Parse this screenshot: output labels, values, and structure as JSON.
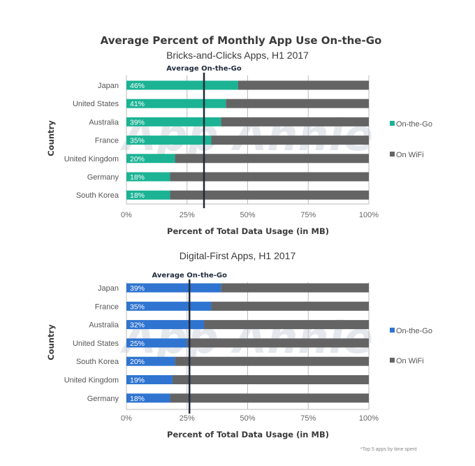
{
  "main_title": "Average Percent of Monthly App Use On-the-Go",
  "footnote": "*Top 5 apps by time spent",
  "watermark": "App Annie",
  "colors": {
    "on_wifi": "#646464",
    "axis": "#bbbbbb",
    "average_line": "#1f2b3b"
  },
  "chart_data": [
    {
      "type": "bar",
      "orientation": "horizontal",
      "stacked": true,
      "title": "Bricks-and-Clicks  Apps, H1 2017",
      "xlabel": "Percent of Total Data Usage (in MB)",
      "ylabel": "Country",
      "xlim": [
        0,
        100
      ],
      "xticks": [
        "0%",
        "25%",
        "50%",
        "75%",
        "100%"
      ],
      "categories": [
        "Japan",
        "United States",
        "Australia",
        "France",
        "United Kingdom",
        "Germany",
        "South Korea"
      ],
      "series": [
        {
          "name": "On-the-Go",
          "color": "#1bb394",
          "values": [
            46,
            41,
            39,
            35,
            20,
            18,
            18
          ]
        },
        {
          "name": "On WiFi",
          "color": "#646464",
          "values": [
            54,
            59,
            61,
            65,
            80,
            82,
            82
          ]
        }
      ],
      "data_labels": [
        "46%",
        "41%",
        "39%",
        "35%",
        "20%",
        "18%",
        "18%"
      ],
      "reference_line": {
        "label": "Average On-the-Go",
        "value": 32
      },
      "legend": [
        "On-the-Go",
        "On WiFi"
      ],
      "legend_position": "right",
      "grid": true
    },
    {
      "type": "bar",
      "orientation": "horizontal",
      "stacked": true,
      "title": "Digital-First Apps, H1 2017",
      "xlabel": "Percent of Total Data Usage (in MB)",
      "ylabel": "Country",
      "xlim": [
        0,
        100
      ],
      "xticks": [
        "0%",
        "25%",
        "50%",
        "75%",
        "100%"
      ],
      "categories": [
        "Japan",
        "France",
        "Australia",
        "United States",
        "South Korea",
        "United Kingdom",
        "Germany"
      ],
      "series": [
        {
          "name": "On-the-Go",
          "color": "#2f74d0",
          "values": [
            39,
            35,
            32,
            25,
            20,
            19,
            18
          ]
        },
        {
          "name": "On WiFi",
          "color": "#646464",
          "values": [
            61,
            65,
            68,
            75,
            80,
            81,
            82
          ]
        }
      ],
      "data_labels": [
        "39%",
        "35%",
        "32%",
        "25%",
        "20%",
        "19%",
        "18%"
      ],
      "reference_line": {
        "label": "Average On-the-Go",
        "value": 26
      },
      "legend": [
        "On-the-Go",
        "On WiFi"
      ],
      "legend_position": "right",
      "grid": true
    }
  ]
}
